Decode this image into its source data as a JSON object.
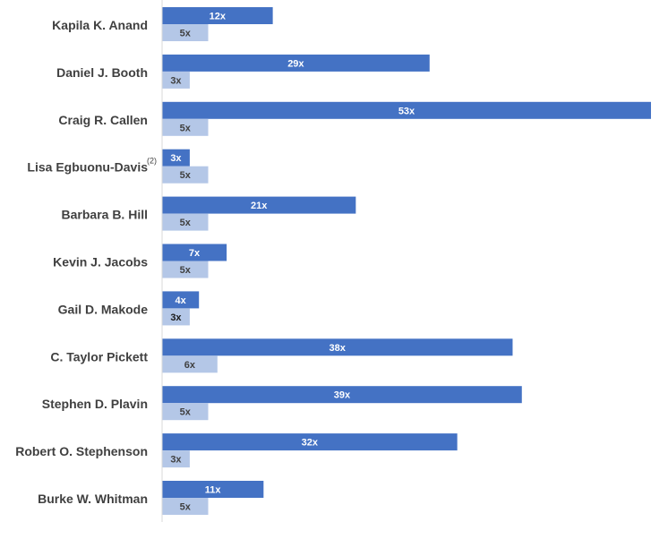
{
  "chart_data": {
    "type": "bar",
    "orientation": "horizontal",
    "categories": [
      "Kapila K. Anand",
      "Daniel J. Booth",
      "Craig R. Callen",
      "Lisa Egbuonu-Davis",
      "Barbara B. Hill",
      "Kevin J. Jacobs",
      "Gail D. Makode",
      "C. Taylor Pickett",
      "Stephen D. Plavin",
      "Robert O. Stephenson",
      "Burke W. Whitman"
    ],
    "category_notes": {
      "Lisa Egbuonu-Davis": "(2)"
    },
    "series": [
      {
        "color": "#4472c4",
        "values": [
          12,
          29,
          53,
          3,
          21,
          7,
          4,
          38,
          39,
          32,
          11
        ],
        "labels": [
          "12x",
          "29x",
          "53x",
          "3x",
          "21x",
          "7x",
          "4x",
          "38x",
          "39x",
          "32x",
          "11x"
        ]
      },
      {
        "color": "#b4c7e7",
        "values": [
          5,
          3,
          5,
          5,
          5,
          5,
          3,
          6,
          5,
          3,
          5
        ],
        "labels": [
          "5x",
          "3x",
          "5x",
          "5x",
          "5x",
          "5x",
          "3x",
          "6x",
          "5x",
          "3x",
          "5x"
        ]
      }
    ],
    "xlim": [
      0,
      53
    ],
    "grid": false,
    "legend": "none",
    "axis_color": "#d9d9d9"
  }
}
